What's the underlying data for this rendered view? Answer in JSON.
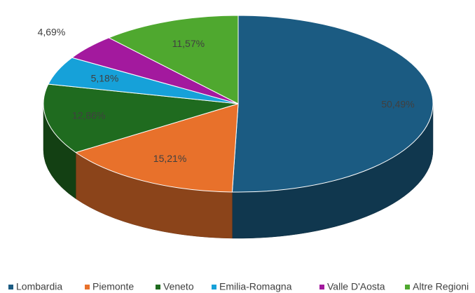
{
  "chart_data": {
    "type": "pie",
    "categories": [
      "Lombardia",
      "Piemonte",
      "Veneto",
      "Emilia-Romagna",
      "Valle D'Aosta",
      "Altre Regioni"
    ],
    "values": [
      50.49,
      15.21,
      12.86,
      5.18,
      4.69,
      11.57
    ],
    "value_labels": [
      "50,49%",
      "15,21%",
      "12,86%",
      "5,18%",
      "4,69%",
      "11,57%"
    ],
    "colors": [
      "#1b5b82",
      "#e8712b",
      "#1f6b1f",
      "#16a1d9",
      "#a3199e",
      "#4fa82f"
    ],
    "legend": "bottom"
  }
}
